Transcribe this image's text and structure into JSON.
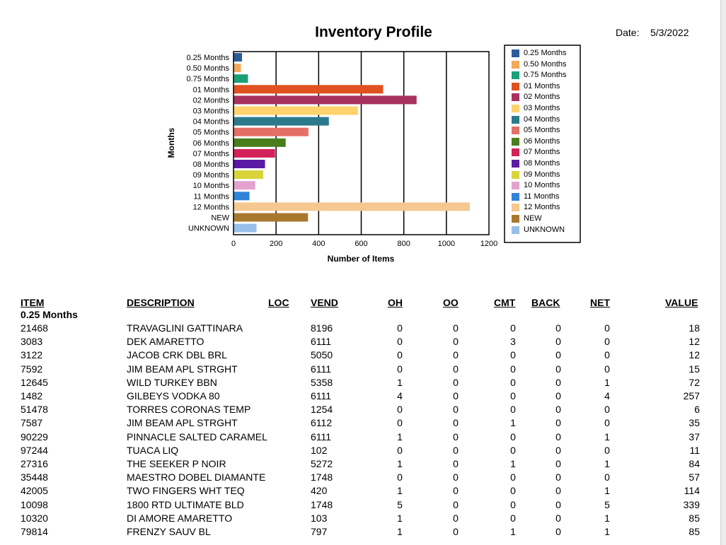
{
  "report": {
    "title": "Inventory Profile",
    "date_label": "Date:",
    "date_value": "5/3/2022"
  },
  "chart_data": {
    "type": "bar",
    "orientation": "horizontal",
    "xlabel": "Number of Items",
    "ylabel": "Months",
    "xlim": [
      0,
      1200
    ],
    "xticks": [
      0,
      200,
      400,
      600,
      800,
      1000,
      1200
    ],
    "grid": "vertical",
    "legend": "right",
    "categories": [
      "0.25 Months",
      "0.50 Months",
      "0.75 Months",
      "01 Months",
      "02 Months",
      "03 Months",
      "04 Months",
      "05 Months",
      "06 Months",
      "07 Months",
      "08 Months",
      "09 Months",
      "10 Months",
      "11 Months",
      "12 Months",
      "NEW",
      "UNKNOWN"
    ],
    "values": [
      40,
      35,
      68,
      703,
      860,
      585,
      448,
      352,
      245,
      195,
      148,
      140,
      102,
      75,
      1110,
      350,
      108
    ],
    "colors": [
      "#2c5d9a",
      "#f1a95b",
      "#1aa078",
      "#e0521f",
      "#a8315e",
      "#ffd36b",
      "#2b7a8c",
      "#e36f67",
      "#4a7e1c",
      "#d3225a",
      "#5b1aa3",
      "#d8d43a",
      "#e3a2cf",
      "#2f84d8",
      "#f5c88f",
      "#a8782f",
      "#98bfe9"
    ]
  },
  "table": {
    "headers": {
      "item": "ITEM",
      "description": "DESCRIPTION",
      "loc": "LOC",
      "vend": "VEND",
      "oh": "OH",
      "oo": "OO",
      "cmt": "CMT",
      "back": "BACK",
      "net": "NET",
      "value": "VALUE"
    },
    "group_label": "0.25 Months",
    "rows": [
      {
        "item": "21468",
        "desc": "TRAVAGLINI GATTINARA",
        "vend": "8196",
        "oh": "0",
        "oo": "0",
        "cmt": "0",
        "back": "0",
        "net": "0",
        "value": "18"
      },
      {
        "item": "3083",
        "desc": "DEK AMARETTO",
        "vend": "6111",
        "oh": "0",
        "oo": "0",
        "cmt": "3",
        "back": "0",
        "net": "0",
        "value": "12"
      },
      {
        "item": "3122",
        "desc": "JACOB CRK DBL BRL",
        "vend": "5050",
        "oh": "0",
        "oo": "0",
        "cmt": "0",
        "back": "0",
        "net": "0",
        "value": "12"
      },
      {
        "item": "7592",
        "desc": "JIM BEAM APL STRGHT",
        "vend": "6111",
        "oh": "0",
        "oo": "0",
        "cmt": "0",
        "back": "0",
        "net": "0",
        "value": "15"
      },
      {
        "item": "12645",
        "desc": "WILD TURKEY BBN",
        "vend": "5358",
        "oh": "1",
        "oo": "0",
        "cmt": "0",
        "back": "0",
        "net": "1",
        "value": "72"
      },
      {
        "item": "1482",
        "desc": "GILBEYS VODKA 80",
        "vend": "6111",
        "oh": "4",
        "oo": "0",
        "cmt": "0",
        "back": "0",
        "net": "4",
        "value": "257"
      },
      {
        "item": "51478",
        "desc": "TORRES CORONAS TEMP",
        "vend": "1254",
        "oh": "0",
        "oo": "0",
        "cmt": "0",
        "back": "0",
        "net": "0",
        "value": "6"
      },
      {
        "item": "7587",
        "desc": "JIM BEAM APL STRGHT",
        "vend": "6112",
        "oh": "0",
        "oo": "0",
        "cmt": "1",
        "back": "0",
        "net": "0",
        "value": "35"
      },
      {
        "item": "90229",
        "desc": "PINNACLE SALTED CARAMEL",
        "vend": "6111",
        "oh": "1",
        "oo": "0",
        "cmt": "0",
        "back": "0",
        "net": "1",
        "value": "37"
      },
      {
        "item": "97244",
        "desc": "TUACA LIQ",
        "vend": "102",
        "oh": "0",
        "oo": "0",
        "cmt": "0",
        "back": "0",
        "net": "0",
        "value": "11"
      },
      {
        "item": "27316",
        "desc": "THE SEEKER P NOIR",
        "vend": "5272",
        "oh": "1",
        "oo": "0",
        "cmt": "1",
        "back": "0",
        "net": "1",
        "value": "84"
      },
      {
        "item": "35448",
        "desc": "MAESTRO DOBEL DIAMANTE",
        "vend": "1748",
        "oh": "0",
        "oo": "0",
        "cmt": "0",
        "back": "0",
        "net": "0",
        "value": "57"
      },
      {
        "item": "42005",
        "desc": "TWO FINGERS WHT TEQ",
        "vend": "420",
        "oh": "1",
        "oo": "0",
        "cmt": "0",
        "back": "0",
        "net": "1",
        "value": "114"
      },
      {
        "item": "10098",
        "desc": "1800 RTD ULTIMATE BLD",
        "vend": "1748",
        "oh": "5",
        "oo": "0",
        "cmt": "0",
        "back": "0",
        "net": "5",
        "value": "339"
      },
      {
        "item": "10320",
        "desc": "DI AMORE AMARETTO",
        "vend": "103",
        "oh": "1",
        "oo": "0",
        "cmt": "0",
        "back": "0",
        "net": "1",
        "value": "85"
      },
      {
        "item": "79814",
        "desc": "FRENZY SAUV BL",
        "vend": "797",
        "oh": "1",
        "oo": "0",
        "cmt": "1",
        "back": "0",
        "net": "1",
        "value": "85"
      }
    ]
  }
}
